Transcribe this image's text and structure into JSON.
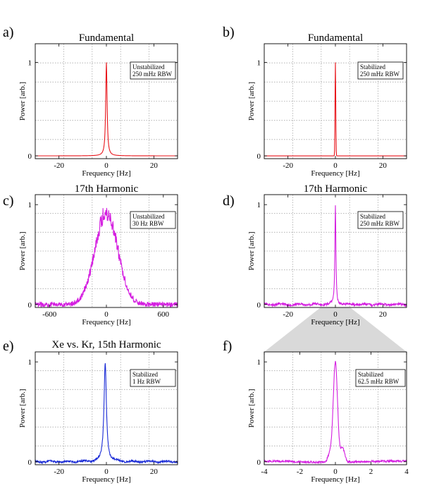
{
  "chart_data": [
    {
      "type": "line",
      "panel": "a)",
      "title": "Fundamental",
      "xlabel": "Frequency [Hz]",
      "ylabel": "Power [arb.]",
      "xlim": [
        -30,
        30
      ],
      "ylim": [
        -0.03,
        1.2
      ],
      "xticks": [
        -20,
        0,
        20
      ],
      "xtick_labels": [
        "-20",
        "0",
        "20"
      ],
      "yticks": [
        0,
        1
      ],
      "ytick_labels": [
        "0",
        "1"
      ],
      "color": "#e8141a",
      "annotation": [
        "Unstabilized",
        "250 mHz RBW"
      ],
      "series": [
        {
          "name": "Fundamental",
          "shape": "lorentz",
          "center": 0,
          "width": 0.35,
          "peak": 1,
          "noise": 0
        }
      ]
    },
    {
      "type": "line",
      "panel": "b)",
      "title": "Fundamental",
      "xlabel": "Frequency [Hz]",
      "ylabel": "Power [arb.]",
      "xlim": [
        -30,
        30
      ],
      "ylim": [
        -0.03,
        1.2
      ],
      "xticks": [
        -20,
        0,
        20
      ],
      "xtick_labels": [
        "-20",
        "0",
        "20"
      ],
      "yticks": [
        0,
        1
      ],
      "ytick_labels": [
        "0",
        "1"
      ],
      "color": "#e8141a",
      "annotation": [
        "Stabilized",
        "250 mHz RBW"
      ],
      "series": [
        {
          "name": "Fundamental",
          "shape": "gauss",
          "center": 0,
          "width": 0.15,
          "peak": 1,
          "noise": 0
        }
      ]
    },
    {
      "type": "line",
      "panel": "c)",
      "title": "17th Harmonic",
      "xlabel": "Frequency [Hz]",
      "ylabel": "Power [arb.]",
      "xlim": [
        -750,
        750
      ],
      "ylim": [
        -0.03,
        1.1
      ],
      "xticks": [
        -600,
        0,
        600
      ],
      "xtick_labels": [
        "-600",
        "0",
        "600"
      ],
      "yticks": [
        0,
        1
      ],
      "ytick_labels": [
        "0",
        "1"
      ],
      "color": "#d41ee0",
      "annotation": [
        "Unstabilized",
        "30 Hz RBW"
      ],
      "series": [
        {
          "name": "17th Harmonic",
          "shape": "gauss",
          "center": 0,
          "width": 120,
          "peak": 0.92,
          "noise": 0.07
        }
      ]
    },
    {
      "type": "line",
      "panel": "d)",
      "title": "17th Harmonic",
      "xlabel": "Frequency [Hz]",
      "ylabel": "Power [arb.]",
      "xlim": [
        -30,
        30
      ],
      "ylim": [
        -0.03,
        1.1
      ],
      "xticks": [
        -20,
        0,
        20
      ],
      "xtick_labels": [
        "-20",
        "0",
        "20"
      ],
      "yticks": [
        0,
        1
      ],
      "ytick_labels": [
        "0",
        "1"
      ],
      "color": "#d41ee0",
      "annotation": [
        "Stabilized",
        "250 mHz RBW"
      ],
      "series": [
        {
          "name": "17th Harmonic",
          "shape": "lorentz",
          "center": 0,
          "width": 0.25,
          "peak": 1,
          "noise": 0.012
        }
      ]
    },
    {
      "type": "line",
      "panel": "e)",
      "title": "Xe vs. Kr, 15th Harmonic",
      "xlabel": "Frequency [Hz]",
      "ylabel": "Power [arb.]",
      "xlim": [
        -30,
        30
      ],
      "ylim": [
        -0.03,
        1.1
      ],
      "xticks": [
        -20,
        0,
        20
      ],
      "xtick_labels": [
        "-20",
        "0",
        "20"
      ],
      "yticks": [
        0,
        1
      ],
      "ytick_labels": [
        "0",
        "1"
      ],
      "color": "#1a2bd6",
      "annotation": [
        "Stabilized",
        "1 Hz RBW"
      ],
      "series": [
        {
          "name": "Xe vs. Kr",
          "shape": "lorentz",
          "center": -0.5,
          "width": 0.6,
          "peak": 1,
          "noise": 0.01
        }
      ]
    },
    {
      "type": "line",
      "panel": "f)",
      "title": "",
      "xlabel": "Frequency [Hz]",
      "ylabel": "Power [arb.]",
      "xlim": [
        -4,
        4
      ],
      "ylim": [
        -0.03,
        1.1
      ],
      "xticks": [
        -4,
        -2,
        0,
        2,
        4
      ],
      "xtick_labels": [
        "-4",
        "-2",
        "0",
        "2",
        "4"
      ],
      "yticks": [
        0,
        1
      ],
      "ytick_labels": [
        "0",
        "1"
      ],
      "color": "#d41ee0",
      "annotation": [
        "Stabilized",
        "62.5 mHz RBW"
      ],
      "series": [
        {
          "name": "Zoom",
          "shape": "zoom",
          "center": 0,
          "width": 0.12,
          "peak": 1,
          "noise": 0.01
        }
      ]
    }
  ]
}
